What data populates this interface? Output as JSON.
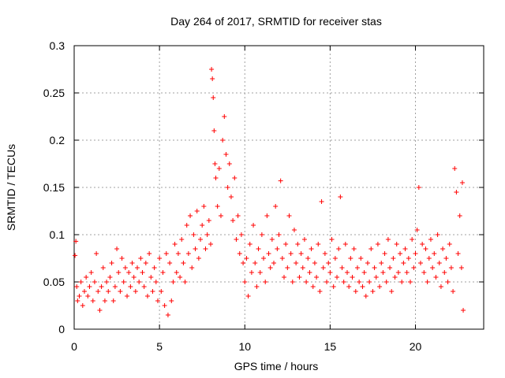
{
  "chart_data": {
    "type": "scatter",
    "title": "Day 264 of 2017, SRMTID for receiver stas",
    "xlabel": "GPS time / hours",
    "ylabel": "SRMTID / TECUs",
    "xlim": [
      0,
      24
    ],
    "ylim": [
      0,
      0.3
    ],
    "xticks": [
      0,
      5,
      10,
      15,
      20
    ],
    "yticks": [
      0,
      0.05,
      0.1,
      0.15,
      0.2,
      0.25,
      0.3
    ],
    "xtick_labels": [
      "0",
      "5",
      "10",
      "15",
      "20"
    ],
    "ytick_labels": [
      "0",
      "0.05",
      "0.1",
      "0.15",
      "0.2",
      "0.25",
      "0.3"
    ],
    "grid": true,
    "marker": "+",
    "color": "#ff0000",
    "series": [
      {
        "name": "SRMTID",
        "points": [
          [
            0.05,
            0.078
          ],
          [
            0.1,
            0.093
          ],
          [
            0.15,
            0.045
          ],
          [
            0.2,
            0.03
          ],
          [
            0.3,
            0.035
          ],
          [
            0.4,
            0.05
          ],
          [
            0.5,
            0.025
          ],
          [
            0.6,
            0.04
          ],
          [
            0.7,
            0.055
          ],
          [
            0.8,
            0.035
          ],
          [
            0.9,
            0.045
          ],
          [
            1.0,
            0.06
          ],
          [
            1.1,
            0.03
          ],
          [
            1.2,
            0.05
          ],
          [
            1.3,
            0.08
          ],
          [
            1.4,
            0.04
          ],
          [
            1.5,
            0.02
          ],
          [
            1.6,
            0.045
          ],
          [
            1.7,
            0.065
          ],
          [
            1.8,
            0.03
          ],
          [
            1.9,
            0.05
          ],
          [
            2.0,
            0.04
          ],
          [
            2.1,
            0.055
          ],
          [
            2.2,
            0.07
          ],
          [
            2.3,
            0.03
          ],
          [
            2.4,
            0.045
          ],
          [
            2.5,
            0.085
          ],
          [
            2.6,
            0.06
          ],
          [
            2.7,
            0.04
          ],
          [
            2.8,
            0.075
          ],
          [
            2.9,
            0.05
          ],
          [
            3.0,
            0.065
          ],
          [
            3.1,
            0.035
          ],
          [
            3.2,
            0.06
          ],
          [
            3.3,
            0.045
          ],
          [
            3.4,
            0.07
          ],
          [
            3.5,
            0.055
          ],
          [
            3.6,
            0.04
          ],
          [
            3.7,
            0.065
          ],
          [
            3.8,
            0.05
          ],
          [
            3.9,
            0.075
          ],
          [
            4.0,
            0.06
          ],
          [
            4.1,
            0.045
          ],
          [
            4.2,
            0.07
          ],
          [
            4.3,
            0.035
          ],
          [
            4.4,
            0.08
          ],
          [
            4.5,
            0.055
          ],
          [
            4.6,
            0.04
          ],
          [
            4.7,
            0.065
          ],
          [
            4.8,
            0.05
          ],
          [
            4.9,
            0.03
          ],
          [
            5.0,
            0.075
          ],
          [
            5.1,
            0.04
          ],
          [
            5.2,
            0.06
          ],
          [
            5.3,
            0.025
          ],
          [
            5.4,
            0.08
          ],
          [
            5.5,
            0.015
          ],
          [
            5.6,
            0.07
          ],
          [
            5.7,
            0.03
          ],
          [
            5.8,
            0.05
          ],
          [
            5.9,
            0.09
          ],
          [
            6.0,
            0.06
          ],
          [
            6.1,
            0.08
          ],
          [
            6.2,
            0.055
          ],
          [
            6.3,
            0.095
          ],
          [
            6.4,
            0.07
          ],
          [
            6.5,
            0.05
          ],
          [
            6.6,
            0.11
          ],
          [
            6.7,
            0.08
          ],
          [
            6.8,
            0.12
          ],
          [
            6.9,
            0.065
          ],
          [
            7.0,
            0.1
          ],
          [
            7.1,
            0.085
          ],
          [
            7.2,
            0.125
          ],
          [
            7.3,
            0.075
          ],
          [
            7.4,
            0.095
          ],
          [
            7.5,
            0.11
          ],
          [
            7.6,
            0.13
          ],
          [
            7.7,
            0.085
          ],
          [
            7.8,
            0.1
          ],
          [
            7.9,
            0.115
          ],
          [
            8.0,
            0.09
          ],
          [
            8.05,
            0.275
          ],
          [
            8.1,
            0.265
          ],
          [
            8.15,
            0.245
          ],
          [
            8.2,
            0.21
          ],
          [
            8.25,
            0.175
          ],
          [
            8.3,
            0.16
          ],
          [
            8.4,
            0.13
          ],
          [
            8.5,
            0.17
          ],
          [
            8.6,
            0.12
          ],
          [
            8.7,
            0.2
          ],
          [
            8.8,
            0.225
          ],
          [
            8.9,
            0.185
          ],
          [
            9.0,
            0.15
          ],
          [
            9.1,
            0.175
          ],
          [
            9.2,
            0.14
          ],
          [
            9.3,
            0.115
          ],
          [
            9.4,
            0.16
          ],
          [
            9.5,
            0.095
          ],
          [
            9.6,
            0.12
          ],
          [
            9.7,
            0.08
          ],
          [
            9.8,
            0.1
          ],
          [
            9.9,
            0.07
          ],
          [
            10.0,
            0.05
          ],
          [
            10.1,
            0.075
          ],
          [
            10.2,
            0.035
          ],
          [
            10.3,
            0.09
          ],
          [
            10.4,
            0.06
          ],
          [
            10.5,
            0.11
          ],
          [
            10.6,
            0.07
          ],
          [
            10.7,
            0.045
          ],
          [
            10.8,
            0.085
          ],
          [
            10.9,
            0.06
          ],
          [
            11.0,
            0.1
          ],
          [
            11.1,
            0.075
          ],
          [
            11.2,
            0.05
          ],
          [
            11.3,
            0.12
          ],
          [
            11.4,
            0.08
          ],
          [
            11.5,
            0.065
          ],
          [
            11.6,
            0.095
          ],
          [
            11.7,
            0.07
          ],
          [
            11.8,
            0.13
          ],
          [
            11.9,
            0.085
          ],
          [
            12.0,
            0.1
          ],
          [
            12.1,
            0.157
          ],
          [
            12.2,
            0.075
          ],
          [
            12.3,
            0.055
          ],
          [
            12.4,
            0.09
          ],
          [
            12.5,
            0.065
          ],
          [
            12.6,
            0.12
          ],
          [
            12.7,
            0.08
          ],
          [
            12.8,
            0.05
          ],
          [
            12.9,
            0.105
          ],
          [
            13.0,
            0.07
          ],
          [
            13.1,
            0.09
          ],
          [
            13.2,
            0.055
          ],
          [
            13.3,
            0.08
          ],
          [
            13.4,
            0.065
          ],
          [
            13.5,
            0.095
          ],
          [
            13.6,
            0.05
          ],
          [
            13.7,
            0.075
          ],
          [
            13.8,
            0.06
          ],
          [
            13.9,
            0.085
          ],
          [
            14.0,
            0.045
          ],
          [
            14.1,
            0.07
          ],
          [
            14.2,
            0.055
          ],
          [
            14.3,
            0.09
          ],
          [
            14.4,
            0.04
          ],
          [
            14.5,
            0.135
          ],
          [
            14.6,
            0.065
          ],
          [
            14.7,
            0.08
          ],
          [
            14.8,
            0.05
          ],
          [
            14.9,
            0.07
          ],
          [
            15.0,
            0.06
          ],
          [
            15.1,
            0.095
          ],
          [
            15.2,
            0.045
          ],
          [
            15.3,
            0.075
          ],
          [
            15.4,
            0.055
          ],
          [
            15.5,
            0.085
          ],
          [
            15.6,
            0.14
          ],
          [
            15.7,
            0.065
          ],
          [
            15.8,
            0.05
          ],
          [
            15.9,
            0.09
          ],
          [
            16.0,
            0.06
          ],
          [
            16.1,
            0.045
          ],
          [
            16.2,
            0.075
          ],
          [
            16.3,
            0.055
          ],
          [
            16.4,
            0.085
          ],
          [
            16.5,
            0.04
          ],
          [
            16.6,
            0.065
          ],
          [
            16.7,
            0.05
          ],
          [
            16.8,
            0.075
          ],
          [
            16.9,
            0.045
          ],
          [
            17.0,
            0.06
          ],
          [
            17.1,
            0.035
          ],
          [
            17.2,
            0.07
          ],
          [
            17.3,
            0.05
          ],
          [
            17.4,
            0.085
          ],
          [
            17.5,
            0.04
          ],
          [
            17.6,
            0.065
          ],
          [
            17.7,
            0.055
          ],
          [
            17.8,
            0.09
          ],
          [
            17.9,
            0.045
          ],
          [
            18.0,
            0.07
          ],
          [
            18.1,
            0.06
          ],
          [
            18.2,
            0.08
          ],
          [
            18.3,
            0.05
          ],
          [
            18.4,
            0.095
          ],
          [
            18.5,
            0.065
          ],
          [
            18.6,
            0.04
          ],
          [
            18.7,
            0.075
          ],
          [
            18.8,
            0.055
          ],
          [
            18.9,
            0.09
          ],
          [
            19.0,
            0.06
          ],
          [
            19.1,
            0.08
          ],
          [
            19.2,
            0.05
          ],
          [
            19.3,
            0.07
          ],
          [
            19.4,
            0.085
          ],
          [
            19.5,
            0.06
          ],
          [
            19.6,
            0.075
          ],
          [
            19.7,
            0.05
          ],
          [
            19.8,
            0.095
          ],
          [
            19.9,
            0.065
          ],
          [
            20.0,
            0.08
          ],
          [
            20.1,
            0.105
          ],
          [
            20.2,
            0.15
          ],
          [
            20.3,
            0.07
          ],
          [
            20.4,
            0.09
          ],
          [
            20.5,
            0.06
          ],
          [
            20.6,
            0.085
          ],
          [
            20.7,
            0.05
          ],
          [
            20.8,
            0.075
          ],
          [
            20.9,
            0.095
          ],
          [
            21.0,
            0.065
          ],
          [
            21.1,
            0.08
          ],
          [
            21.2,
            0.055
          ],
          [
            21.3,
            0.1
          ],
          [
            21.4,
            0.07
          ],
          [
            21.5,
            0.045
          ],
          [
            21.6,
            0.085
          ],
          [
            21.7,
            0.06
          ],
          [
            21.8,
            0.075
          ],
          [
            21.9,
            0.05
          ],
          [
            22.0,
            0.09
          ],
          [
            22.1,
            0.065
          ],
          [
            22.2,
            0.04
          ],
          [
            22.3,
            0.17
          ],
          [
            22.4,
            0.145
          ],
          [
            22.5,
            0.08
          ],
          [
            22.6,
            0.12
          ],
          [
            22.7,
            0.065
          ],
          [
            22.75,
            0.155
          ],
          [
            22.8,
            0.02
          ]
        ]
      }
    ]
  }
}
